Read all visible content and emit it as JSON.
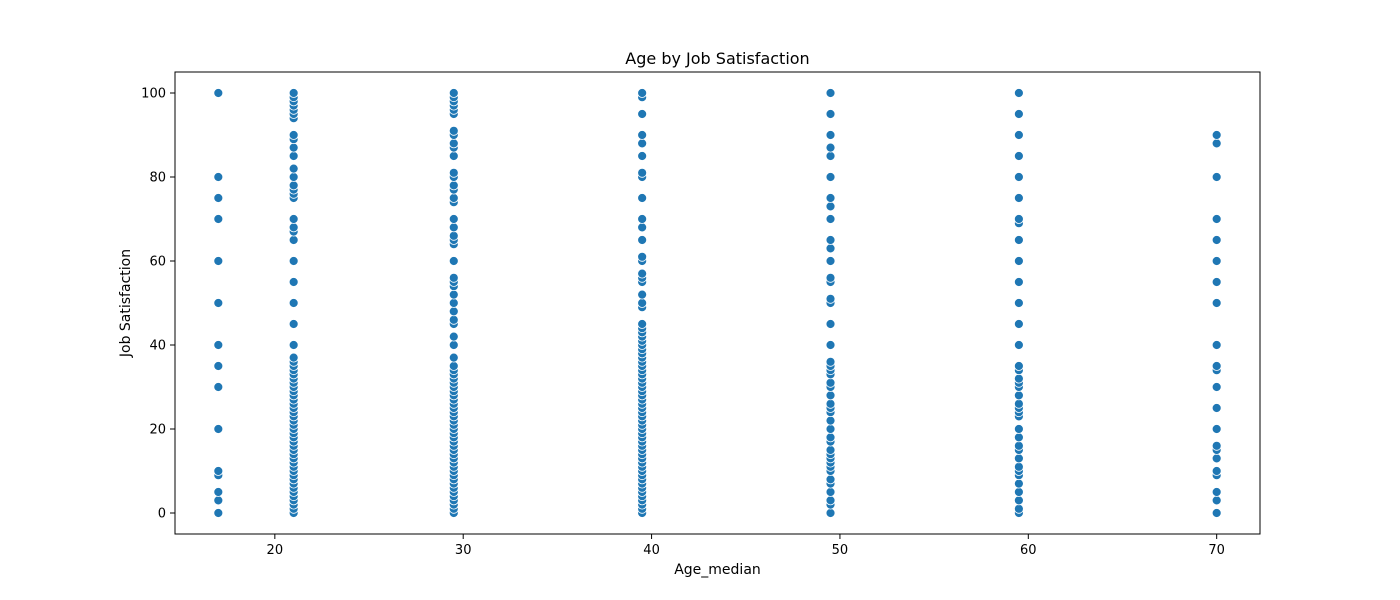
{
  "chart_data": {
    "type": "scatter",
    "title": "Age by Job Satisfaction",
    "xlabel": "Age_median",
    "ylabel": "Job Satisfaction",
    "xlim": [
      14.7,
      72.3
    ],
    "ylim": [
      -5,
      105
    ],
    "x_ticks": [
      20,
      30,
      40,
      50,
      60,
      70
    ],
    "y_ticks": [
      0,
      20,
      40,
      60,
      80,
      100
    ],
    "grid": false,
    "point_color": "#1f77b4",
    "series": [
      {
        "x": 17,
        "y": [
          0,
          3,
          5,
          9,
          10,
          20,
          30,
          35,
          40,
          50,
          60,
          70,
          75,
          80,
          100
        ]
      },
      {
        "x": 21,
        "y": [
          0,
          1,
          2,
          3,
          4,
          5,
          6,
          7,
          8,
          9,
          10,
          11,
          12,
          13,
          14,
          15,
          16,
          17,
          18,
          19,
          20,
          21,
          22,
          23,
          24,
          25,
          26,
          27,
          28,
          29,
          30,
          31,
          32,
          33,
          34,
          35,
          36,
          37,
          40,
          45,
          50,
          55,
          60,
          65,
          67,
          68,
          70,
          75,
          76,
          77,
          78,
          80,
          82,
          85,
          87,
          89,
          90,
          94,
          95,
          96,
          97,
          98,
          99,
          100
        ]
      },
      {
        "x": 29.5,
        "y": [
          0,
          1,
          2,
          3,
          4,
          5,
          6,
          7,
          8,
          9,
          10,
          11,
          12,
          13,
          14,
          15,
          16,
          17,
          18,
          19,
          20,
          21,
          22,
          23,
          24,
          25,
          26,
          27,
          28,
          29,
          30,
          31,
          32,
          33,
          34,
          35,
          37,
          40,
          42,
          45,
          46,
          48,
          50,
          52,
          54,
          55,
          56,
          60,
          64,
          65,
          66,
          68,
          70,
          74,
          75,
          77,
          78,
          80,
          81,
          85,
          87,
          88,
          90,
          91,
          95,
          96,
          97,
          98,
          99,
          100
        ]
      },
      {
        "x": 39.5,
        "y": [
          0,
          1,
          2,
          3,
          4,
          5,
          6,
          7,
          8,
          9,
          10,
          11,
          12,
          13,
          14,
          15,
          16,
          17,
          18,
          19,
          20,
          21,
          22,
          23,
          24,
          25,
          26,
          27,
          28,
          29,
          30,
          31,
          32,
          33,
          34,
          35,
          36,
          37,
          38,
          39,
          40,
          41,
          42,
          43,
          44,
          45,
          49,
          50,
          52,
          55,
          56,
          57,
          60,
          61,
          65,
          68,
          70,
          75,
          80,
          81,
          85,
          88,
          90,
          95,
          99,
          100
        ]
      },
      {
        "x": 49.5,
        "y": [
          0,
          2,
          3,
          5,
          7,
          8,
          10,
          11,
          12,
          13,
          14,
          15,
          17,
          18,
          20,
          22,
          24,
          25,
          26,
          28,
          30,
          31,
          33,
          34,
          35,
          36,
          40,
          45,
          50,
          51,
          55,
          56,
          60,
          63,
          65,
          70,
          73,
          75,
          80,
          85,
          87,
          90,
          95,
          100
        ]
      },
      {
        "x": 59.5,
        "y": [
          0,
          1,
          3,
          5,
          7,
          9,
          10,
          11,
          13,
          15,
          16,
          18,
          20,
          23,
          24,
          25,
          26,
          28,
          30,
          31,
          32,
          34,
          35,
          40,
          45,
          50,
          55,
          60,
          65,
          69,
          70,
          75,
          80,
          85,
          90,
          95,
          100
        ]
      },
      {
        "x": 70,
        "y": [
          0,
          3,
          5,
          9,
          10,
          13,
          15,
          16,
          20,
          25,
          30,
          34,
          35,
          40,
          50,
          55,
          60,
          65,
          70,
          80,
          88,
          90
        ]
      }
    ]
  }
}
